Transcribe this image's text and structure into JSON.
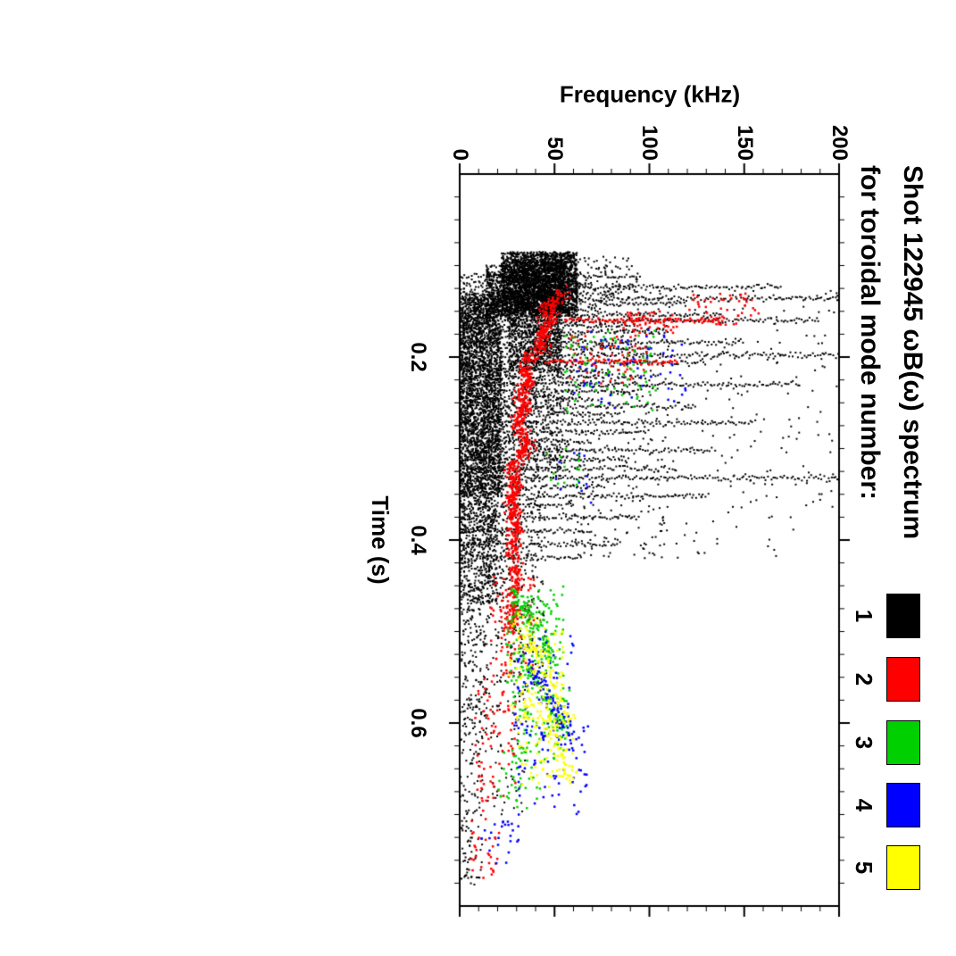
{
  "chart_data": {
    "type": "scatter",
    "title": "Shot 122945 ωB(ω) spectrum",
    "subtitle": "for toroidal mode number:",
    "xlabel": "Time (s)",
    "ylabel": "Frequency (kHz)",
    "xlim": [
      0,
      0.8
    ],
    "ylim": [
      0,
      200
    ],
    "xticks": [
      0.2,
      0.4,
      0.6
    ],
    "xtick_labels": [
      "0.2",
      "0.4",
      "0.6"
    ],
    "yticks": [
      0,
      50,
      100,
      150,
      200
    ],
    "ytick_labels": [
      "0",
      "50",
      "100",
      "150",
      "200"
    ],
    "x_minor_step": 0.025,
    "y_minor_step": 10,
    "grid": false,
    "orientation": "whole plot rotated 90 degrees clockwise on the page",
    "legend": {
      "position": "top-right",
      "items": [
        {
          "label": "1",
          "color": "#000000"
        },
        {
          "label": "2",
          "color": "#ff0000"
        },
        {
          "label": "3",
          "color": "#00d000"
        },
        {
          "label": "4",
          "color": "#0000ff"
        },
        {
          "label": "5",
          "color": "#ffff00"
        }
      ]
    },
    "cluster_format": "[t_start_s, t_end_s, f_min_kHz, f_max_kHz, n_points]",
    "streak_format": "[time_s, f_min_kHz, f_max_kHz] broadband burst at fixed time",
    "track_format": "points = [t_s, f_kHz] ridge polyline with gaussian scatter",
    "series": [
      {
        "name": "n=1",
        "color": "#000000",
        "point_size": 2,
        "clusters": [
          [
            0.085,
            0.155,
            22,
            62,
            2200
          ],
          [
            0.095,
            0.15,
            30,
            55,
            900
          ],
          [
            0.1,
            0.16,
            14,
            30,
            420
          ],
          [
            0.13,
            0.35,
            0,
            22,
            2600
          ],
          [
            0.35,
            0.47,
            0,
            20,
            650
          ],
          [
            0.155,
            0.215,
            26,
            54,
            650
          ],
          [
            0.21,
            0.33,
            22,
            55,
            480
          ],
          [
            0.33,
            0.47,
            20,
            45,
            230
          ],
          [
            0.12,
            0.42,
            55,
            110,
            330
          ],
          [
            0.12,
            0.42,
            110,
            200,
            170
          ],
          [
            0.09,
            0.13,
            60,
            95,
            70
          ],
          [
            0.47,
            0.57,
            15,
            45,
            110
          ],
          [
            0.47,
            0.62,
            0,
            15,
            190
          ],
          [
            0.62,
            0.78,
            0,
            12,
            110
          ],
          [
            0.57,
            0.7,
            12,
            35,
            60
          ]
        ],
        "streaks": [
          [
            0.112,
            0,
            96
          ],
          [
            0.118,
            0,
            70
          ],
          [
            0.124,
            0,
            170
          ],
          [
            0.13,
            0,
            84
          ],
          [
            0.136,
            0,
            200
          ],
          [
            0.142,
            0,
            120
          ],
          [
            0.148,
            0,
            75
          ],
          [
            0.154,
            0,
            140
          ],
          [
            0.16,
            0,
            190
          ],
          [
            0.166,
            0,
            90
          ],
          [
            0.172,
            0,
            110
          ],
          [
            0.178,
            0,
            65
          ],
          [
            0.184,
            0,
            150
          ],
          [
            0.19,
            0,
            100
          ],
          [
            0.198,
            0,
            200
          ],
          [
            0.206,
            0,
            130
          ],
          [
            0.214,
            0,
            80
          ],
          [
            0.222,
            0,
            105
          ],
          [
            0.23,
            0,
            180
          ],
          [
            0.238,
            0,
            95
          ],
          [
            0.246,
            0,
            70
          ],
          [
            0.254,
            0,
            125
          ],
          [
            0.262,
            0,
            85
          ],
          [
            0.272,
            0,
            155
          ],
          [
            0.282,
            0,
            100
          ],
          [
            0.292,
            0,
            70
          ],
          [
            0.302,
            0,
            135
          ],
          [
            0.312,
            0,
            90
          ],
          [
            0.322,
            0,
            115
          ],
          [
            0.332,
            0,
            200
          ],
          [
            0.342,
            0,
            75
          ],
          [
            0.352,
            0,
            130
          ],
          [
            0.362,
            0,
            60
          ],
          [
            0.375,
            0,
            95
          ],
          [
            0.39,
            0,
            70
          ],
          [
            0.405,
            0,
            85
          ],
          [
            0.42,
            0,
            65
          ]
        ],
        "tracks": []
      },
      {
        "name": "n=2",
        "color": "#ff0000",
        "point_size": 2.5,
        "clusters": [
          [
            0.13,
            0.165,
            120,
            158,
            50
          ],
          [
            0.15,
            0.175,
            85,
            115,
            40
          ],
          [
            0.17,
            0.23,
            58,
            100,
            60
          ],
          [
            0.44,
            0.55,
            16,
            40,
            90
          ],
          [
            0.55,
            0.68,
            8,
            30,
            70
          ],
          [
            0.68,
            0.77,
            5,
            22,
            35
          ]
        ],
        "streaks": [
          [
            0.16,
            55,
            140
          ],
          [
            0.205,
            45,
            115
          ]
        ],
        "tracks": [
          {
            "sigma": 1.8,
            "n": 950,
            "points": [
              [
                0.13,
                57
              ],
              [
                0.14,
                48
              ],
              [
                0.15,
                44
              ],
              [
                0.158,
                50
              ],
              [
                0.165,
                46
              ],
              [
                0.175,
                42
              ],
              [
                0.185,
                46
              ],
              [
                0.195,
                40
              ],
              [
                0.205,
                35
              ],
              [
                0.215,
                33
              ],
              [
                0.225,
                37
              ],
              [
                0.235,
                34
              ],
              [
                0.245,
                31
              ],
              [
                0.255,
                35
              ],
              [
                0.265,
                32
              ],
              [
                0.275,
                29
              ],
              [
                0.285,
                33
              ],
              [
                0.295,
                36
              ],
              [
                0.305,
                32
              ],
              [
                0.315,
                29
              ],
              [
                0.325,
                27
              ],
              [
                0.335,
                31
              ],
              [
                0.345,
                29
              ],
              [
                0.355,
                27
              ],
              [
                0.365,
                29
              ],
              [
                0.375,
                28
              ],
              [
                0.385,
                30
              ],
              [
                0.395,
                29
              ],
              [
                0.41,
                28
              ],
              [
                0.425,
                29
              ],
              [
                0.44,
                30
              ],
              [
                0.455,
                28
              ],
              [
                0.47,
                27
              ],
              [
                0.485,
                28
              ],
              [
                0.5,
                26
              ]
            ]
          }
        ]
      },
      {
        "name": "n=3",
        "color": "#00d000",
        "point_size": 2.5,
        "clusters": [
          [
            0.17,
            0.26,
            55,
            105,
            80
          ],
          [
            0.45,
            0.56,
            25,
            55,
            130
          ],
          [
            0.56,
            0.64,
            28,
            58,
            80
          ],
          [
            0.63,
            0.7,
            20,
            45,
            40
          ],
          [
            0.3,
            0.34,
            45,
            65,
            15
          ]
        ],
        "streaks": [],
        "tracks": [
          {
            "sigma": 2,
            "n": 80,
            "points": [
              [
                0.455,
                27
              ],
              [
                0.5,
                42
              ],
              [
                0.54,
                50
              ]
            ]
          },
          {
            "sigma": 2,
            "n": 70,
            "points": [
              [
                0.52,
                30
              ],
              [
                0.58,
                48
              ],
              [
                0.61,
                55
              ]
            ]
          }
        ]
      },
      {
        "name": "n=4",
        "color": "#0000ff",
        "point_size": 2.5,
        "clusters": [
          [
            0.17,
            0.26,
            60,
            120,
            60
          ],
          [
            0.5,
            0.62,
            28,
            60,
            80
          ],
          [
            0.6,
            0.7,
            30,
            68,
            60
          ],
          [
            0.7,
            0.76,
            10,
            35,
            25
          ],
          [
            0.3,
            0.36,
            50,
            70,
            12
          ]
        ],
        "streaks": [],
        "tracks": [
          {
            "sigma": 2,
            "n": 60,
            "points": [
              [
                0.52,
                32
              ],
              [
                0.58,
                50
              ],
              [
                0.63,
                60
              ]
            ]
          }
        ]
      },
      {
        "name": "n=5",
        "color": "#ffff00",
        "point_size": 2.5,
        "clusters": [
          [
            0.48,
            0.6,
            26,
            55,
            110
          ],
          [
            0.58,
            0.67,
            30,
            60,
            80
          ]
        ],
        "streaks": [],
        "tracks": [
          {
            "sigma": 2,
            "n": 70,
            "points": [
              [
                0.49,
                30
              ],
              [
                0.55,
                48
              ],
              [
                0.6,
                58
              ]
            ]
          },
          {
            "sigma": 2,
            "n": 60,
            "points": [
              [
                0.56,
                34
              ],
              [
                0.62,
                52
              ],
              [
                0.66,
                60
              ]
            ]
          }
        ]
      }
    ]
  }
}
